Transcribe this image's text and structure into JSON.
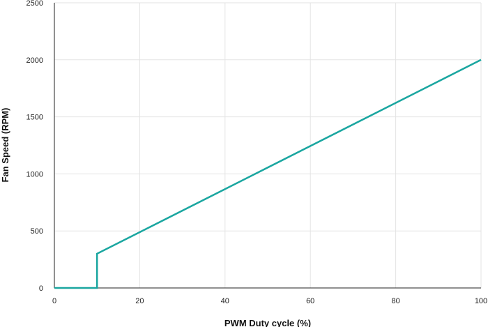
{
  "chart_data": {
    "type": "line",
    "title": "",
    "xlabel": "PWM Duty cycle (%)",
    "ylabel": "Fan Speed (RPM)",
    "xlim": [
      0,
      100
    ],
    "ylim": [
      0,
      2500
    ],
    "xticks": [
      0,
      20,
      40,
      60,
      80,
      100
    ],
    "yticks": [
      0,
      500,
      1000,
      1500,
      2000,
      2500
    ],
    "xtick_labels": [
      "0",
      "20",
      "40",
      "60",
      "80",
      "100"
    ],
    "ytick_labels": [
      "0",
      "500",
      "1000",
      "1500",
      "2000",
      "2500"
    ],
    "grid": true,
    "legend": "none",
    "series": [
      {
        "color": "#1aa6a0",
        "x": [
          0,
          10,
          10,
          100
        ],
        "y": [
          0,
          0,
          300,
          2000
        ]
      }
    ]
  }
}
